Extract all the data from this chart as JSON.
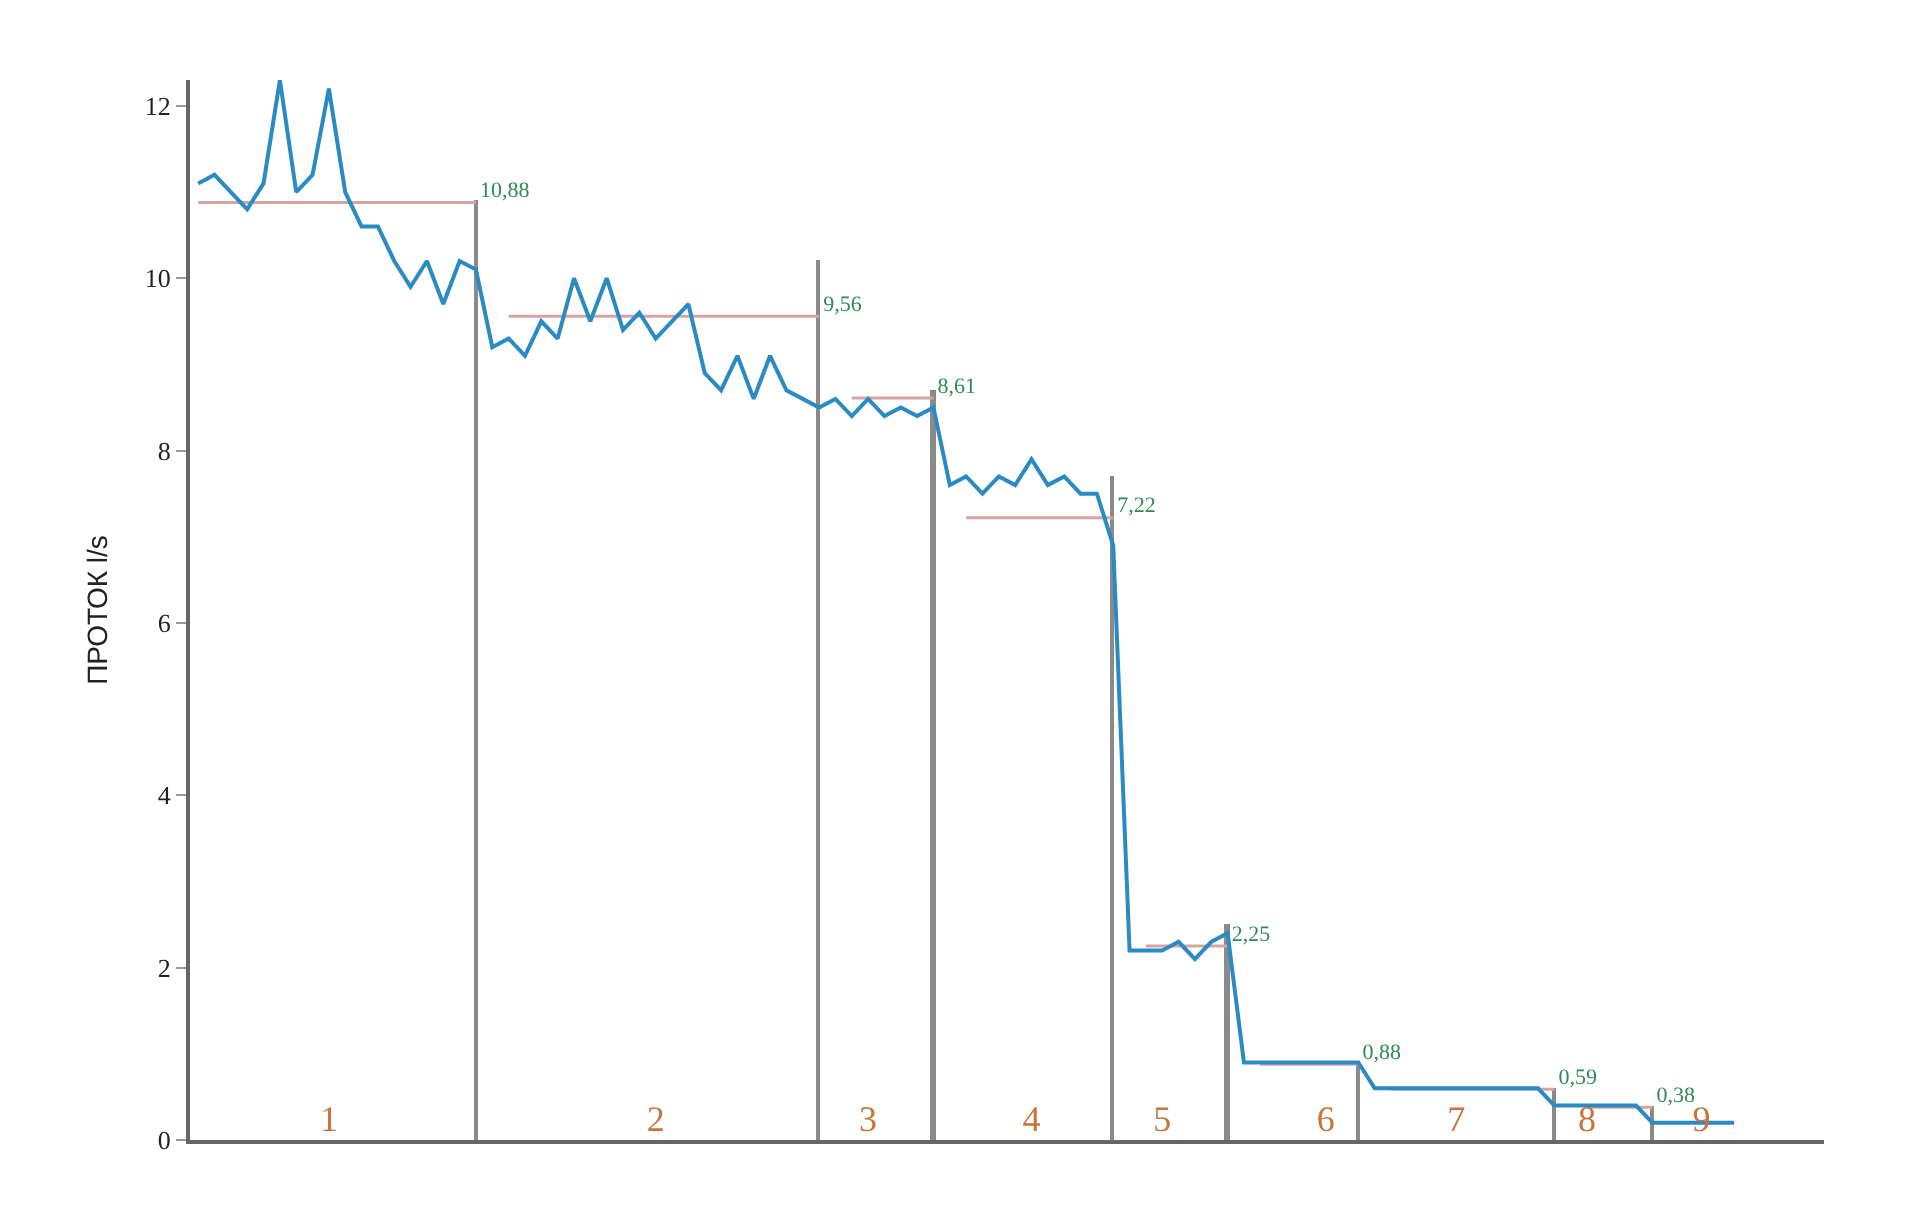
{
  "chart_data": {
    "type": "line",
    "ylabel": "ПРОТОК l/s",
    "ylim": [
      0,
      12.3
    ],
    "yticks": [
      0,
      2,
      4,
      6,
      8,
      10,
      12
    ],
    "marker": "none",
    "line_style": "solid",
    "categories": [
      null,
      null,
      null,
      null,
      null,
      null,
      null,
      null,
      "1",
      null,
      null,
      null,
      null,
      null,
      null,
      null,
      null,
      null,
      null,
      null,
      null,
      null,
      null,
      null,
      null,
      null,
      null,
      null,
      "2",
      null,
      null,
      null,
      null,
      null,
      null,
      null,
      null,
      null,
      null,
      null,
      null,
      "3",
      null,
      null,
      null,
      null,
      null,
      null,
      null,
      null,
      null,
      "4",
      null,
      null,
      null,
      null,
      null,
      null,
      null,
      "5",
      null,
      null,
      null,
      null,
      null,
      null,
      null,
      null,
      null,
      "6",
      null,
      null,
      null,
      null,
      null,
      null,
      null,
      "7",
      null,
      null,
      null,
      null,
      null,
      null,
      null,
      "8",
      null,
      null,
      null,
      null,
      null,
      null,
      "9",
      null,
      null,
      null,
      null,
      null,
      null,
      null
    ],
    "series": [
      {
        "type": "bar",
        "color": "#8a8a8a",
        "values": [
          null,
          null,
          null,
          null,
          null,
          null,
          null,
          null,
          null,
          null,
          null,
          null,
          null,
          null,
          null,
          null,
          null,
          10.9,
          null,
          null,
          null,
          null,
          null,
          null,
          null,
          null,
          null,
          null,
          null,
          null,
          null,
          null,
          null,
          null,
          null,
          null,
          null,
          null,
          10.2,
          null,
          null,
          null,
          null,
          null,
          null,
          8.7,
          null,
          null,
          null,
          null,
          null,
          null,
          null,
          null,
          null,
          null,
          7.7,
          null,
          null,
          null,
          null,
          null,
          null,
          2.5,
          null,
          null,
          null,
          null,
          null,
          null,
          null,
          0.9,
          null,
          null,
          null,
          null,
          null,
          null,
          null,
          null,
          null,
          null,
          null,
          0.6,
          null,
          null,
          null,
          null,
          null,
          0.4,
          null,
          null,
          null,
          null,
          null,
          null,
          null,
          null,
          null,
          null
        ]
      },
      {
        "type": "line",
        "color": "#d9a3a3",
        "values": [
          10.88,
          10.88,
          10.88,
          10.88,
          10.88,
          10.88,
          10.88,
          10.88,
          10.88,
          10.88,
          10.88,
          10.88,
          10.88,
          10.88,
          10.88,
          10.88,
          10.88,
          10.88,
          null,
          9.56,
          9.56,
          9.56,
          9.56,
          9.56,
          9.56,
          9.56,
          9.56,
          9.56,
          9.56,
          9.56,
          9.56,
          9.56,
          9.56,
          9.56,
          9.56,
          9.56,
          9.56,
          9.56,
          9.56,
          null,
          8.61,
          8.61,
          8.61,
          8.61,
          8.61,
          8.61,
          null,
          7.22,
          7.22,
          7.22,
          7.22,
          7.22,
          7.22,
          7.22,
          7.22,
          7.22,
          7.22,
          null,
          2.25,
          2.25,
          2.25,
          2.25,
          2.25,
          2.25,
          null,
          0.88,
          0.88,
          0.88,
          0.88,
          0.88,
          0.88,
          0.88,
          null,
          0.59,
          0.59,
          0.59,
          0.59,
          0.59,
          0.59,
          0.59,
          0.59,
          0.59,
          0.59,
          0.59,
          null,
          0.38,
          0.38,
          0.38,
          0.38,
          0.38,
          null,
          null,
          null,
          null,
          null,
          null,
          null,
          null,
          null,
          null
        ],
        "value_labels": [
          null,
          null,
          null,
          null,
          null,
          null,
          null,
          null,
          null,
          null,
          null,
          null,
          null,
          null,
          null,
          null,
          null,
          "10,88",
          null,
          null,
          null,
          null,
          null,
          null,
          null,
          null,
          null,
          null,
          null,
          null,
          null,
          null,
          null,
          null,
          null,
          null,
          null,
          null,
          "9,56",
          null,
          null,
          null,
          null,
          null,
          null,
          "8,61",
          null,
          null,
          null,
          null,
          null,
          null,
          null,
          null,
          null,
          null,
          "7,22",
          null,
          null,
          null,
          null,
          null,
          null,
          "2,25",
          null,
          null,
          null,
          null,
          null,
          null,
          null,
          "0,88",
          null,
          null,
          null,
          null,
          null,
          null,
          null,
          null,
          null,
          null,
          null,
          "0,59",
          null,
          null,
          null,
          null,
          null,
          "0,38",
          null,
          null,
          null,
          null,
          null,
          null,
          null,
          null,
          null,
          null
        ]
      },
      {
        "color": "#2a8bc4",
        "values": [
          11.1,
          11.2,
          11.0,
          10.8,
          11.1,
          12.3,
          11.0,
          11.2,
          12.2,
          11.0,
          10.6,
          10.6,
          10.2,
          9.9,
          10.2,
          9.7,
          10.2,
          10.1,
          9.2,
          9.3,
          9.1,
          9.5,
          9.3,
          10.0,
          9.5,
          10.0,
          9.4,
          9.6,
          9.3,
          9.5,
          9.7,
          8.9,
          8.7,
          9.1,
          8.6,
          9.1,
          8.7,
          8.6,
          8.5,
          8.6,
          8.4,
          8.6,
          8.4,
          8.5,
          8.4,
          8.5,
          7.6,
          7.7,
          7.5,
          7.7,
          7.6,
          7.9,
          7.6,
          7.7,
          7.5,
          7.5,
          6.9,
          2.2,
          2.2,
          2.2,
          2.3,
          2.1,
          2.3,
          2.4,
          0.9,
          0.9,
          0.9,
          0.9,
          0.9,
          0.9,
          0.9,
          0.9,
          0.6,
          0.6,
          0.6,
          0.6,
          0.6,
          0.6,
          0.6,
          0.6,
          0.6,
          0.6,
          0.6,
          0.4,
          0.4,
          0.4,
          0.4,
          0.4,
          0.4,
          0.2,
          0.2,
          0.2,
          0.2,
          0.2,
          0.2,
          null,
          null,
          null,
          null,
          null
        ]
      }
    ]
  }
}
